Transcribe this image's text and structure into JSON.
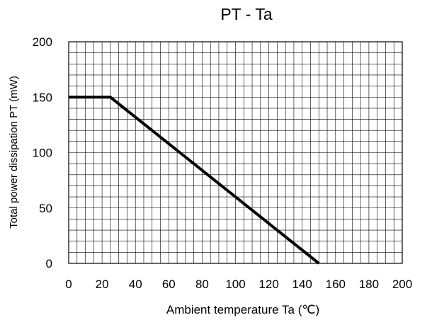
{
  "chart_data": {
    "type": "line",
    "title": "PT - Ta",
    "xlabel": "Ambient temperature Ta (℃)",
    "ylabel": "Total power dissipation PT (mW)",
    "xlim": [
      0,
      200
    ],
    "ylim": [
      0,
      200
    ],
    "xticks": [
      0,
      20,
      40,
      60,
      80,
      100,
      120,
      140,
      160,
      180,
      200
    ],
    "yticks": [
      0,
      50,
      100,
      150,
      200
    ],
    "x_minor_step": 5,
    "y_minor_step": 10,
    "grid": true,
    "series": [
      {
        "x": [
          0,
          25,
          150
        ],
        "y": [
          150,
          150,
          0
        ]
      }
    ]
  }
}
